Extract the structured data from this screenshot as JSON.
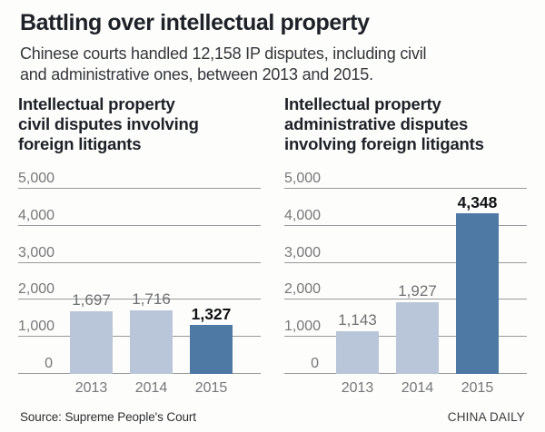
{
  "header": {
    "title": "Battling over intellectual property",
    "subtitle": "Chinese courts handled 12,158 IP disputes, including civil and administrative ones, between 2013 and 2015.",
    "subtitle_lines": [
      "Chinese courts handled 12,158 IP disputes, including civil",
      "and administrative ones, between 2013 and 2015."
    ]
  },
  "chart_data": [
    {
      "type": "bar",
      "title": "Intellectual property civil disputes involving foreign litigants",
      "title_lines": [
        "Intellectual property",
        "civil disputes involving",
        "foreign litigants"
      ],
      "categories": [
        "2013",
        "2014",
        "2015"
      ],
      "values": [
        1697,
        1716,
        1327
      ],
      "value_labels": [
        "1,697",
        "1,716",
        "1,327"
      ],
      "emphasized_index": 2,
      "xlabel": "",
      "ylabel": "",
      "ylim": [
        0,
        5000
      ],
      "yticks": [
        0,
        1000,
        2000,
        3000,
        4000,
        5000
      ],
      "ytick_labels": [
        "0",
        "1,000",
        "2,000",
        "3,000",
        "4,000",
        "5,000"
      ],
      "grid": true,
      "legend": false,
      "colors": {
        "bar": "#b9c5d8",
        "bar_emphasis": "#4d79a4"
      }
    },
    {
      "type": "bar",
      "title": "Intellectual property administrative disputes involving foreign litigants",
      "title_lines": [
        "Intellectual property",
        "administrative disputes",
        "involving foreign litigants"
      ],
      "categories": [
        "2013",
        "2014",
        "2015"
      ],
      "values": [
        1143,
        1927,
        4348
      ],
      "value_labels": [
        "1,143",
        "1,927",
        "4,348"
      ],
      "emphasized_index": 2,
      "xlabel": "",
      "ylabel": "",
      "ylim": [
        0,
        5000
      ],
      "yticks": [
        0,
        1000,
        2000,
        3000,
        4000,
        5000
      ],
      "ytick_labels": [
        "0",
        "1,000",
        "2,000",
        "3,000",
        "4,000",
        "5,000"
      ],
      "grid": true,
      "legend": false,
      "colors": {
        "bar": "#b9c5d8",
        "bar_emphasis": "#4d79a4"
      }
    }
  ],
  "footer": {
    "source": "Source: Supreme People's Court",
    "brand": "CHINA DAILY"
  }
}
